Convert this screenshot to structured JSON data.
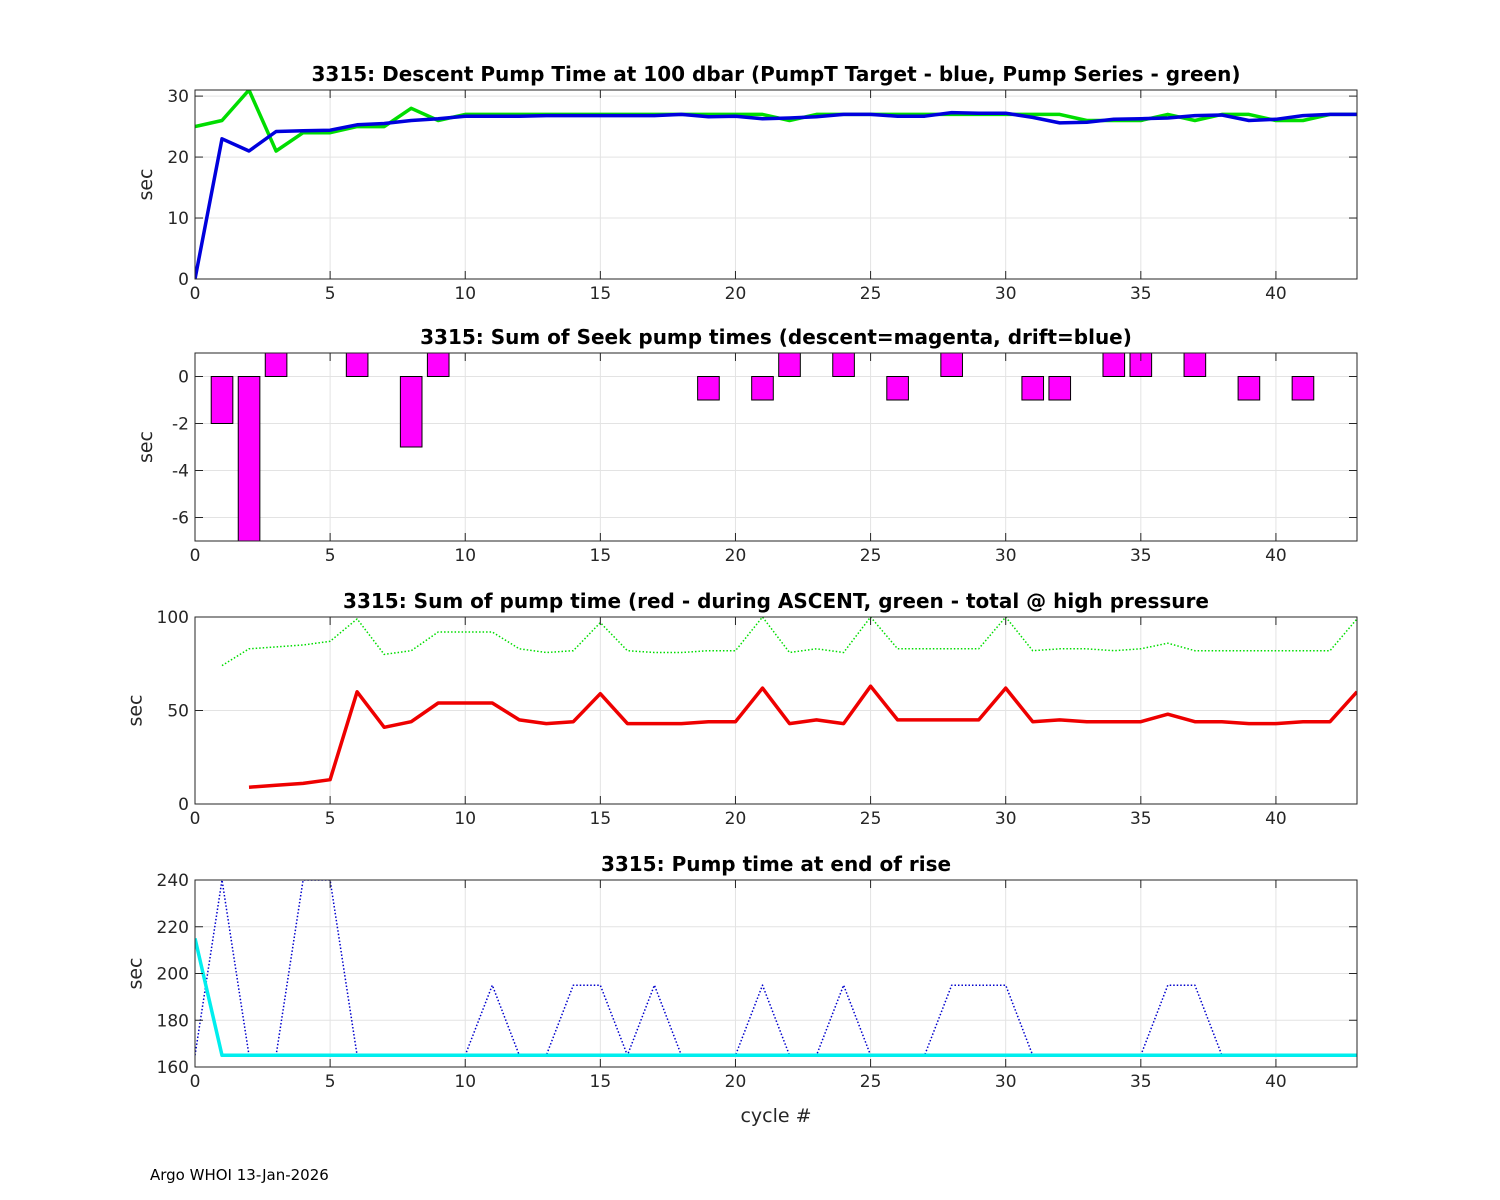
{
  "footer": "Argo WHOI 13-Jan-2026",
  "chart_data": [
    {
      "type": "line",
      "title": "3315: Descent Pump Time at 100 dbar (PumpT Target - blue, Pump Series - green)",
      "xlabel": "",
      "ylabel": "sec",
      "xlim": [
        0,
        43
      ],
      "ylim": [
        0,
        31
      ],
      "xticks": [
        0,
        5,
        10,
        15,
        20,
        25,
        30,
        35,
        40
      ],
      "yticks": [
        0,
        10,
        20,
        30
      ],
      "grid": true,
      "series": [
        {
          "color": "#00dd00",
          "style": "solid",
          "x": [
            0,
            1,
            2,
            3,
            4,
            5,
            6,
            7,
            8,
            9,
            10,
            11,
            12,
            13,
            14,
            15,
            16,
            17,
            18,
            19,
            20,
            21,
            22,
            23,
            24,
            25,
            26,
            27,
            28,
            29,
            30,
            31,
            32,
            33,
            34,
            35,
            36,
            37,
            38,
            39,
            40,
            41,
            42,
            43
          ],
          "values": [
            25,
            26,
            31,
            21,
            24,
            24,
            25,
            25,
            28,
            26,
            27,
            27,
            27,
            27,
            27,
            27,
            27,
            27,
            27,
            27,
            27,
            27,
            26,
            27,
            27,
            27,
            27,
            27,
            27,
            27,
            27,
            27,
            27,
            26,
            26,
            26,
            27,
            26,
            27,
            27,
            26,
            26,
            27,
            27
          ]
        },
        {
          "color": "#0000dd",
          "style": "solid",
          "x": [
            0,
            1,
            2,
            3,
            4,
            5,
            6,
            7,
            8,
            9,
            10,
            11,
            12,
            13,
            14,
            15,
            16,
            17,
            18,
            19,
            20,
            21,
            22,
            23,
            24,
            25,
            26,
            27,
            28,
            29,
            30,
            31,
            32,
            33,
            34,
            35,
            36,
            37,
            38,
            39,
            40,
            41,
            42,
            43
          ],
          "values": [
            0,
            23,
            21,
            24.2,
            24.3,
            24.4,
            25.3,
            25.5,
            26,
            26.3,
            26.7,
            26.7,
            26.7,
            26.8,
            26.8,
            26.8,
            26.8,
            26.8,
            27,
            26.6,
            26.7,
            26.3,
            26.4,
            26.6,
            27,
            27,
            26.7,
            26.7,
            27.3,
            27.2,
            27.2,
            26.5,
            25.6,
            25.7,
            26.2,
            26.3,
            26.4,
            26.8,
            26.9,
            26,
            26.2,
            26.8,
            27,
            27
          ]
        }
      ]
    },
    {
      "type": "bar",
      "title": "3315: Sum of Seek pump times (descent=magenta, drift=blue)",
      "xlabel": "",
      "ylabel": "sec",
      "xlim": [
        0,
        43
      ],
      "ylim": [
        -7,
        1
      ],
      "xticks": [
        0,
        5,
        10,
        15,
        20,
        25,
        30,
        35,
        40
      ],
      "yticks": [
        -6,
        -4,
        -2,
        0
      ],
      "grid": true,
      "series": [
        {
          "color": "#ff00ff",
          "x": [
            1,
            2,
            3,
            6,
            8,
            9,
            19,
            21,
            22,
            24,
            26,
            28,
            31,
            32,
            34,
            35,
            37,
            39,
            41
          ],
          "values": [
            -2,
            -7,
            1,
            1,
            -3,
            1,
            -1,
            -1,
            1,
            1,
            -1,
            1,
            -1,
            -1,
            1,
            1,
            1,
            -1,
            -1
          ]
        }
      ]
    },
    {
      "type": "line",
      "title": "3315: Sum of pump time (red - during ASCENT, green - total @ high pressure",
      "xlabel": "",
      "ylabel": "sec",
      "xlim": [
        0,
        43
      ],
      "ylim": [
        0,
        100
      ],
      "xticks": [
        0,
        5,
        10,
        15,
        20,
        25,
        30,
        35,
        40
      ],
      "yticks": [
        0,
        50,
        100
      ],
      "grid": true,
      "series": [
        {
          "color": "#00dd00",
          "style": "dotted",
          "x": [
            1,
            2,
            3,
            4,
            5,
            6,
            7,
            8,
            9,
            10,
            11,
            12,
            13,
            14,
            15,
            16,
            17,
            18,
            19,
            20,
            21,
            22,
            23,
            24,
            25,
            26,
            27,
            28,
            29,
            30,
            31,
            32,
            33,
            34,
            35,
            36,
            37,
            38,
            39,
            40,
            41,
            42,
            43
          ],
          "values": [
            74,
            83,
            84,
            85,
            87,
            99,
            80,
            82,
            92,
            92,
            92,
            83,
            81,
            82,
            97,
            82,
            81,
            81,
            82,
            82,
            100,
            81,
            83,
            81,
            100,
            83,
            83,
            83,
            83,
            100,
            82,
            83,
            83,
            82,
            83,
            86,
            82,
            82,
            82,
            82,
            82,
            82,
            99
          ]
        },
        {
          "color": "#ee0000",
          "style": "solid",
          "x": [
            2,
            3,
            4,
            5,
            6,
            7,
            8,
            9,
            10,
            11,
            12,
            13,
            14,
            15,
            16,
            17,
            18,
            19,
            20,
            21,
            22,
            23,
            24,
            25,
            26,
            27,
            28,
            29,
            30,
            31,
            32,
            33,
            34,
            35,
            36,
            37,
            38,
            39,
            40,
            41,
            42,
            43
          ],
          "values": [
            9,
            10,
            11,
            13,
            60,
            41,
            44,
            54,
            54,
            54,
            45,
            43,
            44,
            59,
            43,
            43,
            43,
            44,
            44,
            62,
            43,
            45,
            43,
            63,
            45,
            45,
            45,
            45,
            62,
            44,
            45,
            44,
            44,
            44,
            48,
            44,
            44,
            43,
            43,
            44,
            44,
            60
          ]
        }
      ]
    },
    {
      "type": "line",
      "title": "3315: Pump time at end of rise",
      "xlabel": "cycle #",
      "ylabel": "sec",
      "xlim": [
        0,
        43
      ],
      "ylim": [
        160,
        240
      ],
      "xticks": [
        0,
        5,
        10,
        15,
        20,
        25,
        30,
        35,
        40
      ],
      "yticks": [
        160,
        180,
        200,
        220,
        240
      ],
      "grid": true,
      "series": [
        {
          "color": "#0000cc",
          "style": "dotted",
          "x": [
            0,
            1,
            2,
            3,
            4,
            5,
            6,
            7,
            8,
            9,
            10,
            11,
            12,
            13,
            14,
            15,
            16,
            17,
            18,
            19,
            20,
            21,
            22,
            23,
            24,
            25,
            26,
            27,
            28,
            29,
            30,
            31,
            32,
            33,
            34,
            35,
            36,
            37,
            38,
            39,
            40,
            41,
            42,
            43
          ],
          "values": [
            165,
            240,
            165,
            165,
            240,
            240,
            165,
            165,
            165,
            165,
            165,
            195,
            165,
            165,
            195,
            195,
            165,
            195,
            165,
            165,
            165,
            195,
            165,
            165,
            195,
            165,
            165,
            165,
            195,
            195,
            195,
            165,
            165,
            165,
            165,
            165,
            195,
            195,
            165,
            165,
            165,
            165,
            165,
            165
          ]
        },
        {
          "color": "#00eeee",
          "style": "solid",
          "x": [
            0,
            1,
            2,
            3,
            4,
            5,
            6,
            7,
            8,
            9,
            10,
            11,
            12,
            13,
            14,
            15,
            16,
            17,
            18,
            19,
            20,
            21,
            22,
            23,
            24,
            25,
            26,
            27,
            28,
            29,
            30,
            31,
            32,
            33,
            34,
            35,
            36,
            37,
            38,
            39,
            40,
            41,
            42,
            43
          ],
          "values": [
            215,
            165,
            165,
            165,
            165,
            165,
            165,
            165,
            165,
            165,
            165,
            165,
            165,
            165,
            165,
            165,
            165,
            165,
            165,
            165,
            165,
            165,
            165,
            165,
            165,
            165,
            165,
            165,
            165,
            165,
            165,
            165,
            165,
            165,
            165,
            165,
            165,
            165,
            165,
            165,
            165,
            165,
            165,
            165
          ]
        }
      ]
    }
  ]
}
